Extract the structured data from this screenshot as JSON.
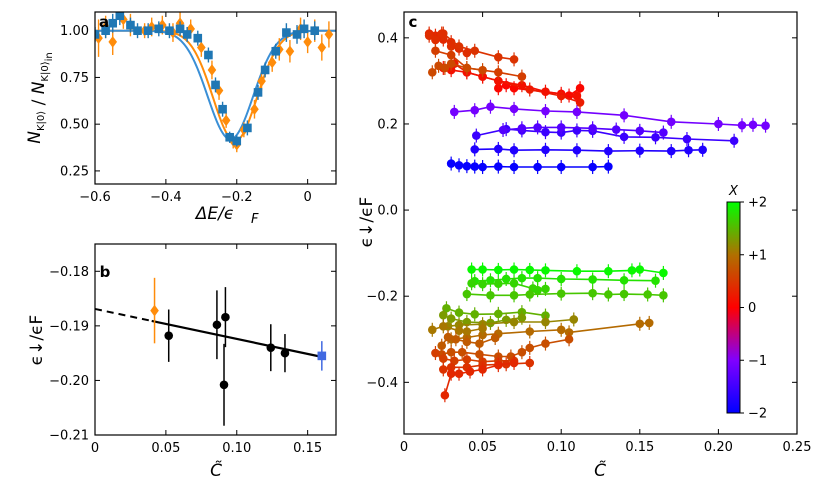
{
  "chart_data": [
    {
      "panel": "a",
      "type": "scatter",
      "xlabel": "ΔE/ε_F",
      "ylabel": "N_K|0⟩ / N_K|0⟩ in",
      "xlim": [
        -0.6,
        0.08
      ],
      "ylim": [
        0.18,
        1.1
      ],
      "xticks": [
        -0.6,
        -0.4,
        -0.2,
        0
      ],
      "xtick_labels": [
        "−0.6",
        "−0.4",
        "−0.2",
        "0"
      ],
      "yticks": [
        0.25,
        0.5,
        0.75,
        1.0
      ],
      "ytick_labels": [
        "0.25",
        "0.50",
        "0.75",
        "1.00"
      ],
      "colors": {
        "orange": "#ff8c0a",
        "blue": "#1f77b4",
        "fit_orange": "#ff8c0a",
        "fit_blue": "#3a8fd6"
      },
      "series": [
        {
          "marker": "diamond",
          "color": "orange",
          "x": [
            -0.59,
            -0.57,
            -0.55,
            -0.52,
            -0.5,
            -0.46,
            -0.44,
            -0.41,
            -0.38,
            -0.36,
            -0.33,
            -0.3,
            -0.27,
            -0.25,
            -0.23,
            -0.21,
            -0.2,
            -0.18,
            -0.15,
            -0.13,
            -0.1,
            -0.08,
            -0.05,
            -0.02,
            0.0,
            0.02,
            0.04,
            0.06
          ],
          "y": [
            0.96,
            1.02,
            0.94,
            1.06,
            1.03,
            1.0,
            1.02,
            1.03,
            0.99,
            1.04,
            1.01,
            0.91,
            0.79,
            0.68,
            0.52,
            0.41,
            0.39,
            0.47,
            0.58,
            0.73,
            0.83,
            0.9,
            0.89,
            1.01,
            0.94,
            1.0,
            0.91,
            0.98
          ],
          "err": [
            0.1,
            0.06,
            0.07,
            0.05,
            0.06,
            0.04,
            0.05,
            0.05,
            0.05,
            0.06,
            0.05,
            0.05,
            0.05,
            0.05,
            0.04,
            0.04,
            0.04,
            0.04,
            0.05,
            0.05,
            0.05,
            0.06,
            0.06,
            0.06,
            0.06,
            0.06,
            0.07,
            0.07
          ]
        },
        {
          "marker": "square",
          "color": "blue",
          "x": [
            -0.6,
            -0.57,
            -0.55,
            -0.53,
            -0.5,
            -0.48,
            -0.45,
            -0.42,
            -0.39,
            -0.36,
            -0.34,
            -0.31,
            -0.28,
            -0.26,
            -0.24,
            -0.22,
            -0.2,
            -0.17,
            -0.14,
            -0.12,
            -0.09,
            -0.06,
            -0.03,
            -0.01,
            0.02
          ],
          "y": [
            0.98,
            1.0,
            1.04,
            1.08,
            1.03,
            1.0,
            1.0,
            1.01,
            1.0,
            1.01,
            0.98,
            0.96,
            0.87,
            0.71,
            0.58,
            0.43,
            0.41,
            0.48,
            0.67,
            0.79,
            0.89,
            0.99,
            0.98,
            1.01,
            1.0
          ],
          "err": [
            0.04,
            0.04,
            0.05,
            0.05,
            0.04,
            0.04,
            0.04,
            0.04,
            0.04,
            0.04,
            0.04,
            0.04,
            0.04,
            0.04,
            0.04,
            0.03,
            0.03,
            0.04,
            0.04,
            0.04,
            0.04,
            0.05,
            0.05,
            0.05,
            0.05
          ]
        }
      ],
      "fits": [
        {
          "color": "fit_orange",
          "baseline": 1.0,
          "depth": 0.59,
          "center": -0.205,
          "width": 0.062
        },
        {
          "color": "fit_blue",
          "baseline": 1.0,
          "depth": 0.58,
          "center": -0.218,
          "width": 0.064
        }
      ]
    },
    {
      "panel": "b",
      "type": "scatter",
      "xlabel": "C̃",
      "ylabel": "ε↓/εF",
      "xlim": [
        0,
        0.17
      ],
      "ylim": [
        -0.21,
        -0.175
      ],
      "xticks": [
        0,
        0.05,
        0.1,
        0.15
      ],
      "xtick_labels": [
        "0",
        "0.05",
        "0.10",
        "0.15"
      ],
      "yticks": [
        -0.21,
        -0.2,
        -0.19,
        -0.18
      ],
      "ytick_labels": [
        "−0.21",
        "−0.20",
        "−0.19",
        "−0.18"
      ],
      "points": [
        {
          "x": 0.042,
          "y": -0.1872,
          "err": 0.006,
          "color": "#ff8c0a",
          "marker": "diamond"
        },
        {
          "x": 0.052,
          "y": -0.1918,
          "err": 0.0048,
          "color": "#000000",
          "marker": "circle"
        },
        {
          "x": 0.086,
          "y": -0.1898,
          "err": 0.0063,
          "color": "#000000",
          "marker": "circle"
        },
        {
          "x": 0.091,
          "y": -0.2008,
          "err": 0.0075,
          "color": "#000000",
          "marker": "circle"
        },
        {
          "x": 0.092,
          "y": -0.1884,
          "err": 0.0055,
          "color": "#000000",
          "marker": "circle"
        },
        {
          "x": 0.124,
          "y": -0.194,
          "err": 0.0043,
          "color": "#000000",
          "marker": "circle"
        },
        {
          "x": 0.134,
          "y": -0.195,
          "err": 0.0035,
          "color": "#000000",
          "marker": "circle"
        },
        {
          "x": 0.16,
          "y": -0.1955,
          "err": 0.0027,
          "color": "#4169e1",
          "marker": "square"
        }
      ],
      "fit_line": {
        "x0": 0.0,
        "y0": -0.1869,
        "x1": 0.162,
        "y1": -0.1958,
        "dashed_until": 0.04
      }
    },
    {
      "panel": "c",
      "type": "scatter",
      "xlabel": "C̃",
      "ylabel": "ε↓/εF",
      "xlim": [
        0,
        0.25
      ],
      "ylim": [
        -0.52,
        0.46
      ],
      "xticks": [
        0,
        0.05,
        0.1,
        0.15,
        0.2,
        0.25
      ],
      "xtick_labels": [
        "0",
        "0.05",
        "0.10",
        "0.15",
        "0.20",
        "0.25"
      ],
      "yticks": [
        -0.4,
        -0.2,
        0.0,
        0.2,
        0.4
      ],
      "ytick_labels": [
        "−0.4",
        "−0.2",
        "0.0",
        "0.2",
        "0.4"
      ],
      "colorbar": {
        "label": "X",
        "range": [
          -2,
          2
        ],
        "ticks": [
          2,
          1,
          0,
          -1,
          -2
        ],
        "tick_labels": [
          "+2",
          "+1",
          "0",
          "−1",
          "−2"
        ],
        "stops": [
          "#0000ff",
          "#8000ff",
          "#ff0000",
          "#b07000",
          "#00ff00"
        ]
      },
      "series": [
        {
          "X": -1.95,
          "x": [
            0.03,
            0.035,
            0.04,
            0.045,
            0.05,
            0.06,
            0.07,
            0.085,
            0.1,
            0.12,
            0.13
          ],
          "y": [
            0.108,
            0.104,
            0.102,
            0.101,
            0.1,
            0.101,
            0.1,
            0.1,
            0.1,
            0.1,
            0.101
          ]
        },
        {
          "X": -1.75,
          "x": [
            0.045,
            0.06,
            0.07,
            0.09,
            0.11,
            0.13,
            0.15,
            0.17,
            0.181,
            0.19
          ],
          "y": [
            0.141,
            0.142,
            0.139,
            0.14,
            0.139,
            0.137,
            0.138,
            0.137,
            0.139,
            0.14
          ]
        },
        {
          "X": -1.55,
          "x": [
            0.046,
            0.065,
            0.075,
            0.09,
            0.1,
            0.11,
            0.12,
            0.14,
            0.16,
            0.18,
            0.21
          ],
          "y": [
            0.173,
            0.188,
            0.185,
            0.181,
            0.18,
            0.185,
            0.184,
            0.17,
            0.169,
            0.165,
            0.161
          ]
        },
        {
          "X": -1.35,
          "x": [
            0.063,
            0.075,
            0.085,
            0.1,
            0.12,
            0.135,
            0.15,
            0.165
          ],
          "y": [
            0.186,
            0.19,
            0.192,
            0.192,
            0.19,
            0.187,
            0.184,
            0.18
          ]
        },
        {
          "X": -1.1,
          "x": [
            0.032,
            0.045,
            0.055,
            0.07,
            0.09,
            0.11,
            0.14,
            0.17,
            0.2,
            0.215,
            0.222,
            0.23
          ],
          "y": [
            0.228,
            0.232,
            0.24,
            0.235,
            0.23,
            0.228,
            0.22,
            0.205,
            0.2,
            0.197,
            0.198,
            0.196
          ]
        },
        {
          "X": 0.05,
          "x": [
            0.06,
            0.065,
            0.07,
            0.1,
            0.105,
            0.112
          ],
          "y": [
            0.283,
            0.29,
            0.283,
            0.27,
            0.266,
            0.283
          ]
        },
        {
          "X": 0.25,
          "x": [
            0.032,
            0.04,
            0.05,
            0.06,
            0.08,
            0.1,
            0.112
          ],
          "y": [
            0.34,
            0.32,
            0.31,
            0.3,
            0.28,
            0.265,
            0.25
          ]
        },
        {
          "X": 0.15,
          "x": [
            0.025,
            0.03,
            0.04,
            0.05,
            0.06,
            0.075,
            0.09,
            0.11
          ],
          "y": [
            0.33,
            0.325,
            0.32,
            0.31,
            0.3,
            0.29,
            0.275,
            0.265
          ]
        },
        {
          "X": 0.35,
          "x": [
            0.016,
            0.02,
            0.025,
            0.03,
            0.035
          ],
          "y": [
            0.41,
            0.405,
            0.396,
            0.39,
            0.375
          ]
        },
        {
          "X": 0.45,
          "x": [
            0.025,
            0.035,
            0.045,
            0.06,
            0.07
          ],
          "y": [
            0.41,
            0.38,
            0.37,
            0.355,
            0.35
          ]
        },
        {
          "X": 0.4,
          "x": [
            0.016,
            0.02,
            0.024,
            0.03,
            0.04
          ],
          "y": [
            0.405,
            0.395,
            0.41,
            0.38,
            0.365
          ]
        },
        {
          "X": 0.55,
          "x": [
            0.02,
            0.03,
            0.04,
            0.06,
            0.075
          ],
          "y": [
            0.37,
            0.36,
            0.33,
            0.32,
            0.31
          ]
        },
        {
          "X": 0.65,
          "x": [
            0.018,
            0.022,
            0.026,
            0.03,
            0.04,
            0.05
          ],
          "y": [
            0.32,
            0.335,
            0.33,
            0.34,
            0.33,
            0.325
          ]
        },
        {
          "X": 1.95,
          "x": [
            0.043,
            0.05,
            0.06,
            0.07,
            0.08,
            0.09,
            0.11,
            0.13,
            0.145,
            0.15,
            0.165
          ],
          "y": [
            -0.138,
            -0.138,
            -0.139,
            -0.138,
            -0.139,
            -0.14,
            -0.142,
            -0.142,
            -0.14,
            -0.138,
            -0.146
          ]
        },
        {
          "X": 1.8,
          "x": [
            0.045,
            0.055,
            0.065,
            0.075,
            0.085,
            0.1,
            0.12,
            0.14,
            0.16
          ],
          "y": [
            -0.165,
            -0.163,
            -0.16,
            -0.158,
            -0.158,
            -0.16,
            -0.161,
            -0.163,
            -0.164
          ]
        },
        {
          "X": 1.7,
          "x": [
            0.043,
            0.05,
            0.06,
            0.07,
            0.082,
            0.085,
            0.09
          ],
          "y": [
            -0.17,
            -0.172,
            -0.171,
            -0.17,
            -0.182,
            -0.186,
            -0.183
          ]
        },
        {
          "X": 1.6,
          "x": [
            0.04,
            0.055,
            0.07,
            0.08,
            0.1,
            0.12,
            0.13,
            0.14,
            0.155,
            0.165
          ],
          "y": [
            -0.195,
            -0.198,
            -0.198,
            -0.196,
            -0.194,
            -0.193,
            -0.196,
            -0.195,
            -0.196,
            -0.198
          ]
        },
        {
          "X": 1.45,
          "x": [
            0.027,
            0.035,
            0.045,
            0.06,
            0.075,
            0.09
          ],
          "y": [
            -0.228,
            -0.238,
            -0.242,
            -0.241,
            -0.237,
            -0.245
          ]
        },
        {
          "X": 1.3,
          "x": [
            0.025,
            0.03,
            0.04,
            0.055,
            0.065,
            0.075
          ],
          "y": [
            -0.244,
            -0.252,
            -0.26,
            -0.262,
            -0.255,
            -0.25
          ]
        },
        {
          "X": 1.15,
          "x": [
            0.028,
            0.035,
            0.05,
            0.07,
            0.09,
            0.108
          ],
          "y": [
            -0.27,
            -0.267,
            -0.265,
            -0.26,
            -0.26,
            -0.254
          ]
        },
        {
          "X": 0.95,
          "x": [
            0.03,
            0.04,
            0.05,
            0.06,
            0.08,
            0.1,
            0.105,
            0.15,
            0.156
          ],
          "y": [
            -0.3,
            -0.296,
            -0.29,
            -0.287,
            -0.282,
            -0.278,
            -0.284,
            -0.264,
            -0.262
          ]
        },
        {
          "X": 1.05,
          "x": [
            0.018,
            0.025,
            0.035,
            0.04,
            0.05
          ],
          "y": [
            -0.278,
            -0.27,
            -0.28,
            -0.282,
            -0.275
          ]
        },
        {
          "X": 0.8,
          "x": [
            0.024,
            0.028,
            0.033,
            0.04,
            0.048,
            0.058
          ],
          "y": [
            -0.315,
            -0.295,
            -0.3,
            -0.306,
            -0.31,
            -0.297
          ]
        },
        {
          "X": 0.7,
          "x": [
            0.024,
            0.03,
            0.037,
            0.048,
            0.06,
            0.068,
            0.075,
            0.08,
            0.09,
            0.105
          ],
          "y": [
            -0.335,
            -0.33,
            -0.33,
            -0.335,
            -0.34,
            -0.34,
            -0.33,
            -0.32,
            -0.31,
            -0.3
          ]
        },
        {
          "X": 0.55,
          "x": [
            0.02,
            0.025,
            0.032,
            0.04,
            0.05,
            0.06,
            0.07
          ],
          "y": [
            -0.332,
            -0.345,
            -0.35,
            -0.347,
            -0.352,
            -0.35,
            -0.35
          ]
        },
        {
          "X": 0.45,
          "x": [
            0.025,
            0.03,
            0.04,
            0.05,
            0.065,
            0.08
          ],
          "y": [
            -0.37,
            -0.365,
            -0.365,
            -0.36,
            -0.358,
            -0.355
          ]
        },
        {
          "X": 0.35,
          "x": [
            0.026,
            0.03,
            0.035,
            0.042,
            0.05,
            0.06,
            0.07
          ],
          "y": [
            -0.43,
            -0.38,
            -0.38,
            -0.375,
            -0.37,
            -0.36,
            -0.355
          ]
        }
      ]
    }
  ]
}
